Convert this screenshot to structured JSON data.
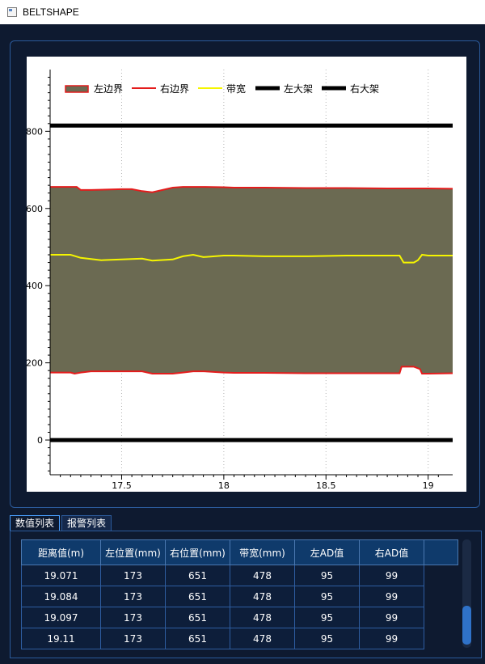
{
  "window": {
    "title": "BELTSHAPE"
  },
  "chart_data": {
    "type": "line",
    "xlabel": "",
    "ylabel": "",
    "xlim": [
      17.15,
      19.12
    ],
    "ylim": [
      -90,
      960
    ],
    "x_ticks": [
      17.5,
      18,
      18.5,
      19
    ],
    "x_tick_labels": [
      "17.5",
      "18",
      "18.5",
      "19"
    ],
    "y_ticks": [
      0,
      200,
      400,
      600,
      800
    ],
    "y_tick_labels": [
      "0",
      "200",
      "400",
      "600",
      "800"
    ],
    "grid": "vertical dotted",
    "legend": [
      {
        "name": "左边界",
        "color": "#e41c1c",
        "fill": "#6b6a52"
      },
      {
        "name": "右边界",
        "color": "#e41c1c"
      },
      {
        "name": "带宽",
        "color": "#f5f500"
      },
      {
        "name": "左大架",
        "color": "#000000"
      },
      {
        "name": "右大架",
        "color": "#000000"
      }
    ],
    "legend_position": "top-left",
    "fill_color": "#6b6a52",
    "series": [
      {
        "name": "右边界",
        "x": [
          17.15,
          17.28,
          17.3,
          17.35,
          17.5,
          17.55,
          17.6,
          17.65,
          17.7,
          17.75,
          17.8,
          17.9,
          18.0,
          18.05,
          18.2,
          18.4,
          18.6,
          18.8,
          19.0,
          19.12
        ],
        "y": [
          656,
          656,
          648,
          648,
          650,
          650,
          645,
          642,
          648,
          654,
          656,
          656,
          655,
          654,
          654,
          653,
          653,
          652,
          652,
          651
        ]
      },
      {
        "name": "左边界",
        "x": [
          17.15,
          17.25,
          17.27,
          17.3,
          17.35,
          17.6,
          17.65,
          17.75,
          17.8,
          17.85,
          17.9,
          18.0,
          18.05,
          18.2,
          18.4,
          18.6,
          18.8,
          18.86,
          18.87,
          18.93,
          18.96,
          18.97,
          19.0,
          19.12
        ],
        "y": [
          175,
          175,
          172,
          175,
          178,
          178,
          172,
          172,
          175,
          178,
          178,
          175,
          174,
          174,
          173,
          173,
          173,
          173,
          190,
          190,
          184,
          172,
          172,
          173
        ]
      },
      {
        "name": "带宽",
        "x": [
          17.15,
          17.25,
          17.3,
          17.4,
          17.5,
          17.6,
          17.65,
          17.75,
          17.8,
          17.85,
          17.9,
          18.0,
          18.05,
          18.2,
          18.4,
          18.6,
          18.86,
          18.88,
          18.93,
          18.95,
          18.97,
          19.0,
          19.12
        ],
        "y": [
          480,
          480,
          472,
          466,
          468,
          470,
          465,
          468,
          476,
          480,
          474,
          478,
          478,
          476,
          476,
          478,
          478,
          460,
          460,
          466,
          480,
          478,
          478
        ]
      },
      {
        "name": "左大架",
        "x": [
          17.15,
          19.12
        ],
        "y": [
          0,
          0
        ]
      },
      {
        "name": "右大架",
        "x": [
          17.15,
          19.12
        ],
        "y": [
          815,
          815
        ]
      }
    ]
  },
  "tabs": [
    {
      "label": "数值列表",
      "active": true
    },
    {
      "label": "报警列表",
      "active": false
    }
  ],
  "table": {
    "columns": [
      "距离值(m)",
      "左位置(mm)",
      "右位置(mm)",
      "带宽(mm)",
      "左AD值",
      "右AD值"
    ],
    "rows": [
      [
        "19.071",
        "173",
        "651",
        "478",
        "95",
        "99"
      ],
      [
        "19.084",
        "173",
        "651",
        "478",
        "95",
        "99"
      ],
      [
        "19.097",
        "173",
        "651",
        "478",
        "95",
        "99"
      ],
      [
        "19.11",
        "173",
        "651",
        "478",
        "95",
        "99"
      ]
    ]
  },
  "scrollbar": {
    "position": 0.95
  }
}
